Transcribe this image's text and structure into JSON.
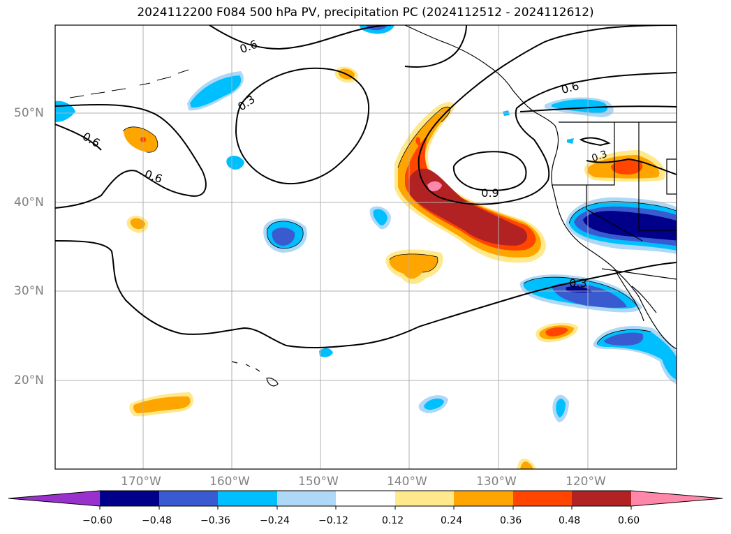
{
  "title": "2024112200 F084 500 hPa PV, precipitation PC (2024112512 - 2024112612)",
  "lat_labels": [
    "50°N",
    "40°N",
    "30°N",
    "20°N"
  ],
  "lon_labels": [
    "170°W",
    "160°W",
    "150°W",
    "140°W",
    "130°W",
    "120°W"
  ],
  "contour_labels": [
    "0.6",
    "0.3",
    "0.6",
    "0.6",
    "0.6",
    "0.9",
    "0.3",
    "0.3"
  ],
  "colorbar": {
    "ticks": [
      "−0.60",
      "−0.48",
      "−0.36",
      "−0.24",
      "−0.12",
      "0.12",
      "0.24",
      "0.36",
      "0.48",
      "0.60"
    ],
    "colors": [
      "#9932cc",
      "#00008b",
      "#3a5bd0",
      "#00bfff",
      "#add8f6",
      "#ffffff",
      "#ffe98a",
      "#ffa500",
      "#ff4500",
      "#b22222",
      "#ff88aa"
    ]
  }
}
